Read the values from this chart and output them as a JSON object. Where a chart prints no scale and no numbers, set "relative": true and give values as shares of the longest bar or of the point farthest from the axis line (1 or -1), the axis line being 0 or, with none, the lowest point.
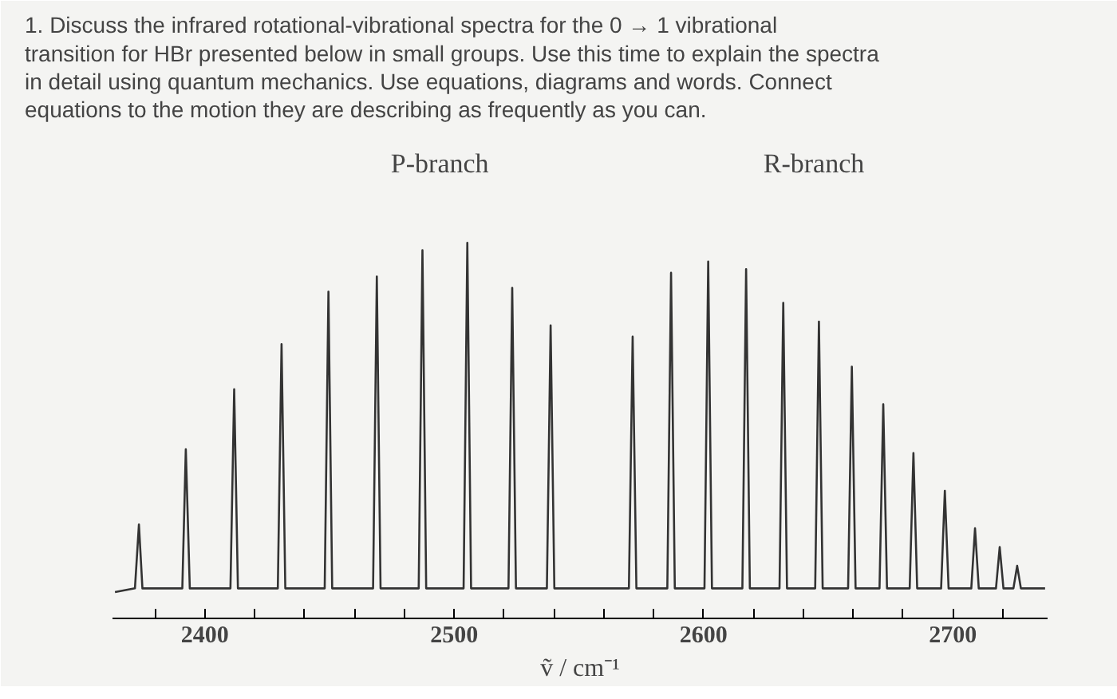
{
  "chart_data": {
    "type": "line",
    "relative": true,
    "title": "1. Discuss the infrared rotational-vibrational spectra for the 0 → 1 vibrational\ntransition for HBr presented below in small groups. Use this time to explain the spectra\nin detail using quantum mechanics. Use equations, diagrams and words. Connect\nequations to the motion they are describing as frequently as you can.",
    "xlabel": "ṽ / cm⁻¹",
    "annotations": [
      "P-branch",
      "R-branch"
    ],
    "x": [
      2364,
      2372,
      2373.6,
      2375,
      2391,
      2392.4,
      2394,
      2410.3,
      2411.8,
      2413.3,
      2429.3,
      2430.8,
      2432.3,
      2448.1,
      2449.6,
      2451.1,
      2467.5,
      2469,
      2470.5,
      2485.8,
      2487.3,
      2488.8,
      2503.8,
      2505.3,
      2506.8,
      2521.8,
      2523.3,
      2524.8,
      2537.2,
      2538.7,
      2540.2,
      2570.1,
      2571.6,
      2573.1,
      2585.5,
      2587,
      2588.5,
      2600.4,
      2601.9,
      2603.4,
      2615.6,
      2617.1,
      2618.6,
      2630.5,
      2632,
      2633.5,
      2644.8,
      2646.3,
      2647.8,
      2658,
      2659.5,
      2661,
      2670.6,
      2672.1,
      2673.6,
      2682.7,
      2684.2,
      2685.7,
      2695.3,
      2696.8,
      2698.3,
      2707.4,
      2708.9,
      2710.4,
      2717.3,
      2718.8,
      2720.3,
      2724.3,
      2725.8,
      2727.3,
      2737
    ],
    "series": [
      {
        "color": "#333333",
        "values": [
          0.07,
          0.08,
          0.25,
          0.08,
          0.08,
          0.45,
          0.08,
          0.08,
          0.61,
          0.08,
          0.08,
          0.73,
          0.08,
          0.08,
          0.87,
          0.08,
          0.08,
          0.91,
          0.08,
          0.08,
          0.98,
          0.08,
          0.08,
          1.0,
          0.08,
          0.08,
          0.88,
          0.08,
          0.08,
          0.78,
          0.08,
          0.08,
          0.75,
          0.08,
          0.08,
          0.92,
          0.08,
          0.08,
          0.95,
          0.08,
          0.08,
          0.93,
          0.08,
          0.08,
          0.84,
          0.08,
          0.08,
          0.79,
          0.08,
          0.08,
          0.67,
          0.08,
          0.08,
          0.57,
          0.08,
          0.08,
          0.44,
          0.08,
          0.08,
          0.34,
          0.08,
          0.08,
          0.24,
          0.08,
          0.08,
          0.19,
          0.08,
          0.08,
          0.14,
          0.08,
          0.08
        ]
      }
    ],
    "xlim": [
      2363,
      2738
    ],
    "xticks": [
      {
        "value": 2380,
        "label": null
      },
      2400,
      {
        "value": 2420,
        "label": null
      },
      {
        "value": 2440,
        "label": null
      },
      {
        "value": 2460,
        "label": null
      },
      {
        "value": 2480,
        "label": null
      },
      2500,
      {
        "value": 2520,
        "label": null
      },
      {
        "value": 2540,
        "label": null
      },
      {
        "value": 2560,
        "label": null
      },
      {
        "value": 2580,
        "label": null
      },
      2600,
      {
        "value": 2620,
        "label": null
      },
      {
        "value": 2640,
        "label": null
      },
      {
        "value": 2660,
        "label": null
      },
      {
        "value": 2680,
        "label": null
      },
      2700,
      {
        "value": 2720,
        "label": null
      }
    ],
    "grid": false
  }
}
